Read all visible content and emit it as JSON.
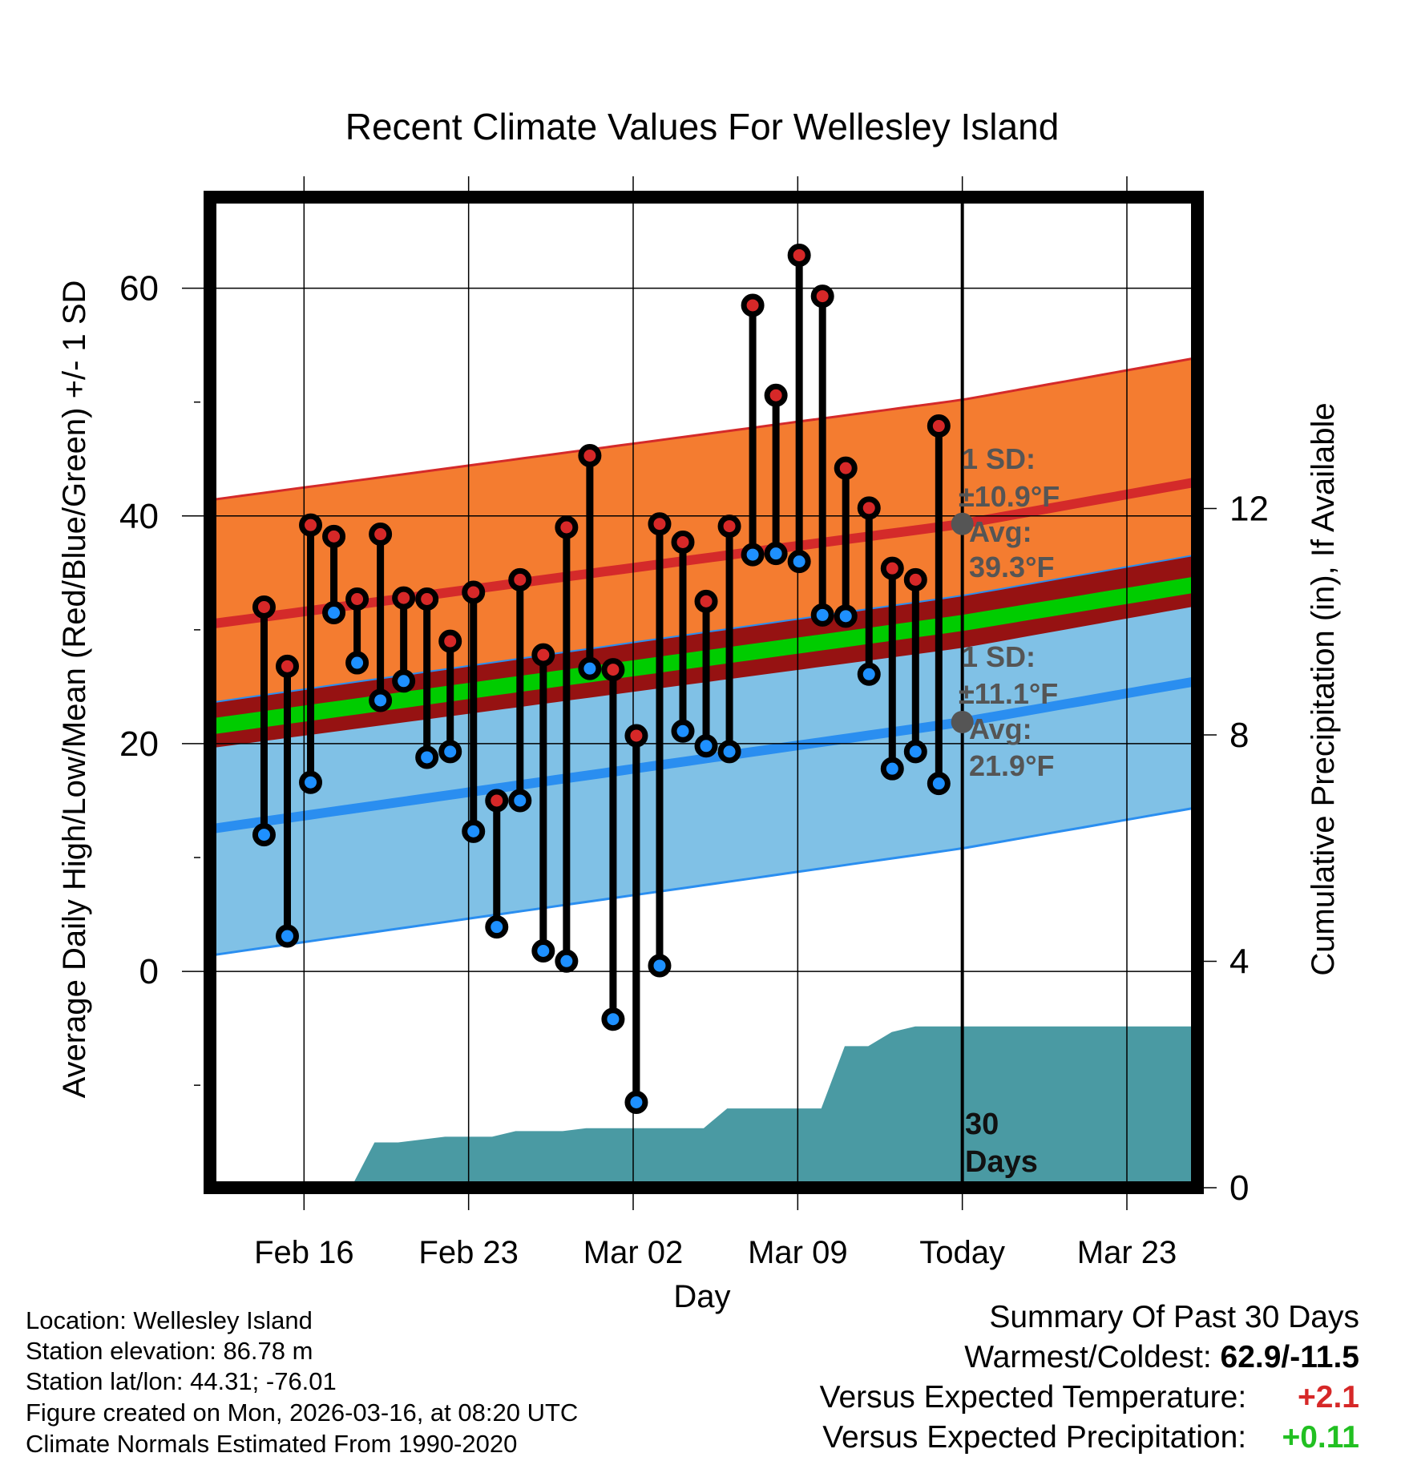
{
  "chart_data": {
    "type": "line",
    "title": "Recent Climate Values For Wellesley Island",
    "xlabel": "Day",
    "ylabel": "Average Daily High/Low/Mean (Red/Blue/Green) +/- 1 SD",
    "y2label": "Cumulative Precipitation (in), If Available",
    "ylim": [
      -19,
      68
    ],
    "y2lim": [
      0,
      17.5
    ],
    "yticks": [
      0,
      20,
      40,
      60
    ],
    "y2ticks": [
      0,
      4,
      8,
      12
    ],
    "x_start_day": -32,
    "x_end_day": 10,
    "x_today_day": 0,
    "x_ticks": [
      {
        "day": -28,
        "label": "Feb 16"
      },
      {
        "day": -21,
        "label": "Feb 23"
      },
      {
        "day": -14,
        "label": "Mar 02"
      },
      {
        "day": -7,
        "label": "Mar 09"
      },
      {
        "day": 0,
        "label": "Today"
      },
      {
        "day": 7,
        "label": "Mar 23"
      }
    ],
    "normals": {
      "days": [
        -32,
        0,
        10
      ],
      "high_avg": [
        30.5,
        39.3,
        43.0
      ],
      "high_sd": 10.9,
      "low_avg": [
        12.5,
        21.9,
        25.5
      ],
      "low_sd": 11.1,
      "mean_avg": [
        21.5,
        30.6,
        34.0
      ]
    },
    "series": [
      {
        "name": "Daily High",
        "values": [
          32.0,
          26.8,
          39.2,
          38.2,
          32.7,
          38.4,
          32.8,
          32.7,
          29.0,
          33.3,
          15.0,
          34.4,
          27.8,
          39.0,
          45.3,
          26.5,
          20.7,
          39.3,
          37.7,
          32.5,
          39.1,
          58.5,
          50.6,
          62.9,
          59.3,
          44.2,
          40.7,
          35.4,
          34.4,
          47.9
        ]
      },
      {
        "name": "Daily Low",
        "values": [
          12.0,
          3.1,
          16.6,
          31.5,
          27.1,
          23.8,
          25.5,
          18.8,
          19.3,
          12.3,
          3.9,
          15.0,
          1.8,
          0.9,
          26.6,
          -4.2,
          -11.5,
          0.5,
          21.1,
          19.8,
          19.3,
          36.6,
          36.7,
          36.0,
          31.3,
          31.2,
          26.1,
          17.8,
          19.3,
          16.5
        ]
      }
    ],
    "precipitation": {
      "days": [
        -26,
        -25,
        -24,
        -22,
        -21,
        -20,
        -19,
        -17,
        -16,
        -15,
        -14,
        -13,
        -12,
        -11,
        -10,
        -9,
        -8,
        -7,
        -6,
        -5,
        -4,
        -3,
        -2,
        -1,
        0,
        10
      ],
      "cumulative": [
        0.0,
        0.8,
        0.8,
        0.9,
        0.9,
        0.9,
        1.0,
        1.0,
        1.05,
        1.05,
        1.05,
        1.05,
        1.05,
        1.05,
        1.4,
        1.4,
        1.4,
        1.4,
        1.4,
        2.5,
        2.5,
        2.75,
        2.85,
        2.85,
        2.85,
        2.85
      ]
    },
    "annotations": {
      "high_sd_label": "1 SD:",
      "high_sd_value": "±10.9°F",
      "high_avg_label": "Avg:",
      "high_avg_value": "39.3°F",
      "low_sd_label": "1 SD:",
      "low_sd_value": "±11.1°F",
      "low_avg_label": "Avg:",
      "low_avg_value": "21.9°F",
      "period_line1": "30",
      "period_line2": "Days"
    }
  },
  "info": {
    "location": "Location: Wellesley Island",
    "elevation": "Station elevation: 86.78 m",
    "latlon": "Station lat/lon: 44.31; -76.01",
    "created": "Figure created on Mon, 2026-03-16, at 08:20 UTC",
    "normals": "Climate Normals Estimated From 1990-2020"
  },
  "summary": {
    "title": "Summary Of Past 30 Days",
    "warm_cold_label": "Warmest/Coldest:",
    "warm_cold_value": "62.9/-11.5",
    "temp_label": "Versus Expected Temperature:",
    "temp_value": "+2.1",
    "precip_label": "Versus Expected Precipitation:",
    "precip_value": "+0.11"
  },
  "colors": {
    "high_band": "#f47c30",
    "high_line": "#d42a2a",
    "mean_band": "#961212",
    "mean_line": "#00cc00",
    "low_band": "#80c1e6",
    "low_line": "#2a8ef0",
    "precip": "#4a9aa3",
    "high_dot": "#d62828",
    "low_dot": "#1e90ff",
    "annotation": "#555555",
    "temp_anomaly": "#d62828",
    "precip_anomaly": "#22c022"
  }
}
